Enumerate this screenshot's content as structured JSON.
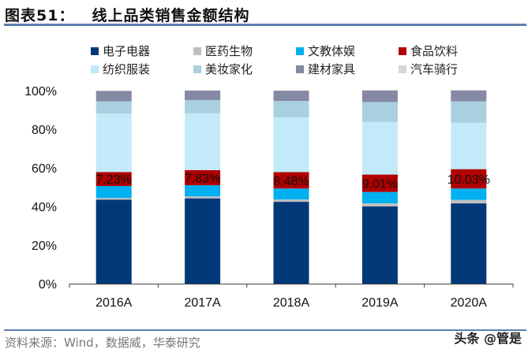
{
  "header": {
    "figure_no": "图表51：",
    "title": "线上品类销售金额结构"
  },
  "footer": {
    "source": "资料来源：Wind，数据威，华泰研究",
    "watermark": "头条 @管是"
  },
  "chart_data": {
    "type": "bar",
    "stacked": true,
    "title": "线上品类销售金额结构",
    "xlabel": "",
    "ylabel": "",
    "ylim": [
      0,
      100
    ],
    "yticks": [
      "0%",
      "20%",
      "40%",
      "60%",
      "80%",
      "100%"
    ],
    "categories": [
      "2016A",
      "2017A",
      "2018A",
      "2019A",
      "2020A"
    ],
    "legend_position": "top",
    "series": [
      {
        "name": "电子电器",
        "color": "#003878",
        "values": [
          43.5,
          44.2,
          42.4,
          40.0,
          41.6
        ]
      },
      {
        "name": "医药生物",
        "color": "#bfbfbf",
        "values": [
          0.9,
          1.0,
          1.2,
          1.6,
          1.8
        ]
      },
      {
        "name": "文教体娱",
        "color": "#00b0f0",
        "values": [
          6.2,
          5.8,
          5.7,
          5.9,
          5.9
        ]
      },
      {
        "name": "食品饮料",
        "color": "#b00000",
        "values": [
          7.23,
          7.83,
          8.48,
          9.01,
          10.03
        ]
      },
      {
        "name": "纺织服装",
        "color": "#c3eaf8",
        "values": [
          30.3,
          29.4,
          28.3,
          27.3,
          24.1
        ]
      },
      {
        "name": "美妆家化",
        "color": "#a9d0de",
        "values": [
          6.3,
          6.9,
          8.6,
          10.3,
          11.0
        ]
      },
      {
        "name": "建材家具",
        "color": "#8589a3",
        "values": [
          5.4,
          4.9,
          5.3,
          6.0,
          5.7
        ]
      },
      {
        "name": "汽车骑行",
        "color": "#d6d6d6",
        "values": [
          0.17,
          0.0,
          0.02,
          0.0,
          0.0
        ]
      }
    ],
    "data_labels": [
      "7.23%",
      "7.83%",
      "8.48%",
      "9.01%",
      "10.03%"
    ]
  }
}
